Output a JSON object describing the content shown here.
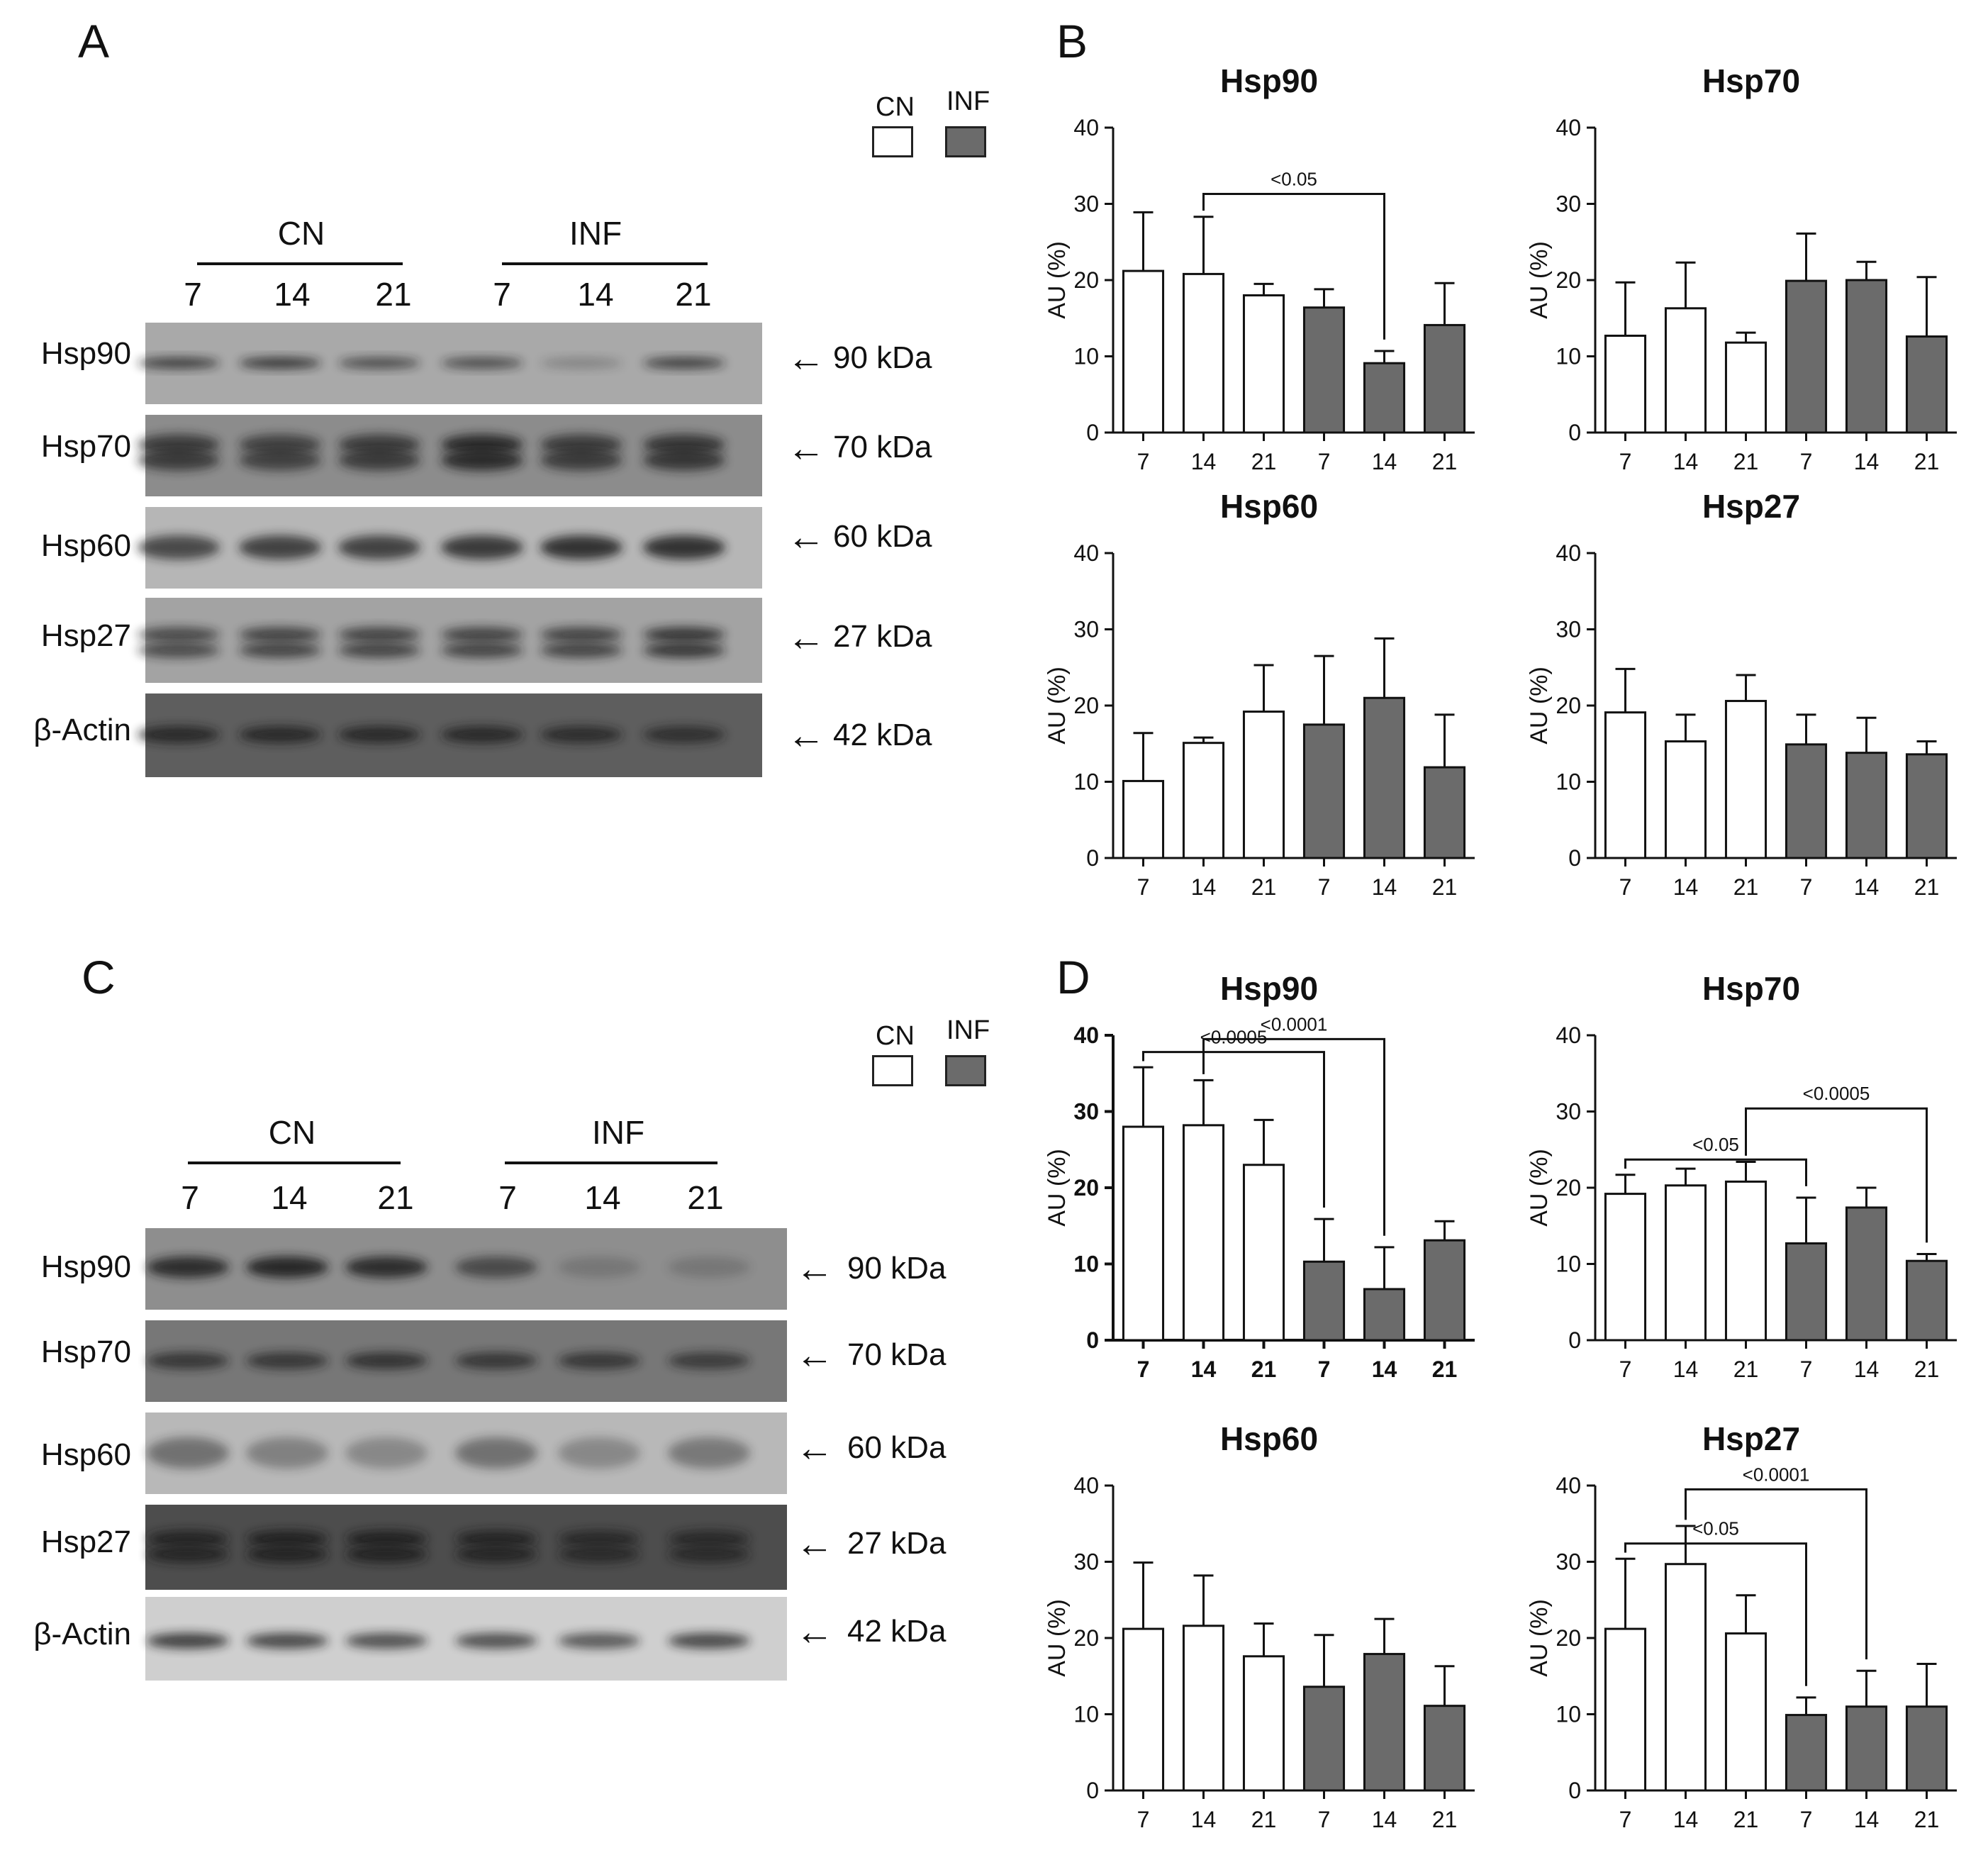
{
  "panels": {
    "A": "A",
    "B": "B",
    "C": "C",
    "D": "D"
  },
  "legend": {
    "cn": "CN",
    "inf": "INF",
    "cn_color": "#ffffff",
    "inf_color": "#6b6b6b"
  },
  "blots": [
    {
      "panel": "A",
      "groups": [
        "CN",
        "INF"
      ],
      "lanes": [
        "7",
        "14",
        "21",
        "7",
        "14",
        "21"
      ],
      "rows": [
        {
          "protein": "Hsp90",
          "kda": "90 kDa"
        },
        {
          "protein": "Hsp70",
          "kda": "70 kDa"
        },
        {
          "protein": "Hsp60",
          "kda": "60 kDa"
        },
        {
          "protein": "Hsp27",
          "kda": "27 kDa"
        },
        {
          "protein": "β-Actin",
          "kda": "42 kDa"
        }
      ]
    },
    {
      "panel": "C",
      "groups": [
        "CN",
        "INF"
      ],
      "lanes": [
        "7",
        "14",
        "21",
        "7",
        "14",
        "21"
      ],
      "rows": [
        {
          "protein": "Hsp90",
          "kda": "90 kDa"
        },
        {
          "protein": "Hsp70",
          "kda": "70 kDa"
        },
        {
          "protein": "Hsp60",
          "kda": "60 kDa"
        },
        {
          "protein": "Hsp27",
          "kda": "27 kDa"
        },
        {
          "protein": "β-Actin",
          "kda": "42 kDa"
        }
      ]
    }
  ],
  "arrow_glyph": "←",
  "chart_data": [
    {
      "panel": "B",
      "type": "bar",
      "title": "Hsp90",
      "ylabel": "AU (%)",
      "ylim": [
        0,
        40
      ],
      "yticks": [
        0,
        10,
        20,
        30,
        40
      ],
      "categories": [
        "7",
        "14",
        "21",
        "7",
        "14",
        "21"
      ],
      "groups": [
        "CN",
        "CN",
        "CN",
        "INF",
        "INF",
        "INF"
      ],
      "values": [
        21.2,
        20.8,
        18.0,
        16.4,
        9.1,
        14.1
      ],
      "errors": [
        7.7,
        7.5,
        1.5,
        2.4,
        1.6,
        5.5
      ],
      "brackets": [
        {
          "from": 1,
          "to": 4,
          "label": "<0.05"
        }
      ],
      "bold": false
    },
    {
      "panel": "B",
      "type": "bar",
      "title": "Hsp70",
      "ylabel": "AU (%)",
      "ylim": [
        0,
        40
      ],
      "yticks": [
        0,
        10,
        20,
        30,
        40
      ],
      "categories": [
        "7",
        "14",
        "21",
        "7",
        "14",
        "21"
      ],
      "groups": [
        "CN",
        "CN",
        "CN",
        "INF",
        "INF",
        "INF"
      ],
      "values": [
        12.7,
        16.3,
        11.8,
        19.9,
        20.0,
        12.6
      ],
      "errors": [
        7.0,
        6.0,
        1.3,
        6.2,
        2.4,
        7.8
      ],
      "brackets": [],
      "bold": false
    },
    {
      "panel": "B",
      "type": "bar",
      "title": "Hsp60",
      "ylabel": "AU (%)",
      "ylim": [
        0,
        40
      ],
      "yticks": [
        0,
        10,
        20,
        30,
        40
      ],
      "categories": [
        "7",
        "14",
        "21",
        "7",
        "14",
        "21"
      ],
      "groups": [
        "CN",
        "CN",
        "CN",
        "INF",
        "INF",
        "INF"
      ],
      "values": [
        10.1,
        15.1,
        19.2,
        17.5,
        21.0,
        11.9
      ],
      "errors": [
        6.3,
        0.7,
        6.1,
        9.0,
        7.8,
        6.9
      ],
      "brackets": [],
      "bold": false
    },
    {
      "panel": "B",
      "type": "bar",
      "title": "Hsp27",
      "ylabel": "AU (%)",
      "ylim": [
        0,
        40
      ],
      "yticks": [
        0,
        10,
        20,
        30,
        40
      ],
      "categories": [
        "7",
        "14",
        "21",
        "7",
        "14",
        "21"
      ],
      "groups": [
        "CN",
        "CN",
        "CN",
        "INF",
        "INF",
        "INF"
      ],
      "values": [
        19.1,
        15.3,
        20.6,
        14.9,
        13.8,
        13.6
      ],
      "errors": [
        5.7,
        3.5,
        3.4,
        3.9,
        4.6,
        1.7
      ],
      "brackets": [],
      "bold": false
    },
    {
      "panel": "D",
      "type": "bar",
      "title": "Hsp90",
      "ylabel": "AU (%)",
      "ylim": [
        0,
        40
      ],
      "yticks": [
        0,
        10,
        20,
        30,
        40
      ],
      "categories": [
        "7",
        "14",
        "21",
        "7",
        "14",
        "21"
      ],
      "groups": [
        "CN",
        "CN",
        "CN",
        "INF",
        "INF",
        "INF"
      ],
      "values": [
        28.0,
        28.2,
        23.0,
        10.3,
        6.7,
        13.1
      ],
      "errors": [
        7.8,
        5.9,
        5.9,
        5.6,
        5.5,
        2.5
      ],
      "brackets": [
        {
          "from": 0,
          "to": 3,
          "label": "<0.0005"
        },
        {
          "from": 1,
          "to": 4,
          "label": "<0.0001"
        }
      ],
      "bold": true
    },
    {
      "panel": "D",
      "type": "bar",
      "title": "Hsp70",
      "ylabel": "AU (%)",
      "ylim": [
        0,
        40
      ],
      "yticks": [
        0,
        10,
        20,
        30,
        40
      ],
      "categories": [
        "7",
        "14",
        "21",
        "7",
        "14",
        "21"
      ],
      "groups": [
        "CN",
        "CN",
        "CN",
        "INF",
        "INF",
        "INF"
      ],
      "values": [
        19.2,
        20.3,
        20.8,
        12.7,
        17.4,
        10.4
      ],
      "errors": [
        2.5,
        2.2,
        2.6,
        6.0,
        2.6,
        0.9
      ],
      "brackets": [
        {
          "from": 0,
          "to": 3,
          "label": "<0.05"
        },
        {
          "from": 2,
          "to": 5,
          "label": "<0.0005"
        }
      ],
      "bold": false
    },
    {
      "panel": "D",
      "type": "bar",
      "title": "Hsp60",
      "ylabel": "AU (%)",
      "ylim": [
        0,
        40
      ],
      "yticks": [
        0,
        10,
        20,
        30,
        40
      ],
      "categories": [
        "7",
        "14",
        "21",
        "7",
        "14",
        "21"
      ],
      "groups": [
        "CN",
        "CN",
        "CN",
        "INF",
        "INF",
        "INF"
      ],
      "values": [
        21.2,
        21.6,
        17.6,
        13.6,
        17.9,
        11.1
      ],
      "errors": [
        8.7,
        6.6,
        4.3,
        6.8,
        4.6,
        5.2
      ],
      "brackets": [],
      "bold": false
    },
    {
      "panel": "D",
      "type": "bar",
      "title": "Hsp27",
      "ylabel": "AU (%)",
      "ylim": [
        0,
        40
      ],
      "yticks": [
        0,
        10,
        20,
        30,
        40
      ],
      "categories": [
        "7",
        "14",
        "21",
        "7",
        "14",
        "21"
      ],
      "groups": [
        "CN",
        "CN",
        "CN",
        "INF",
        "INF",
        "INF"
      ],
      "values": [
        21.2,
        29.7,
        20.6,
        9.9,
        11.0,
        11.0
      ],
      "errors": [
        9.2,
        5.0,
        5.0,
        2.3,
        4.7,
        5.6
      ],
      "brackets": [
        {
          "from": 0,
          "to": 3,
          "label": "<0.05"
        },
        {
          "from": 1,
          "to": 4,
          "label": "<0.0001"
        }
      ],
      "bold": false
    }
  ]
}
